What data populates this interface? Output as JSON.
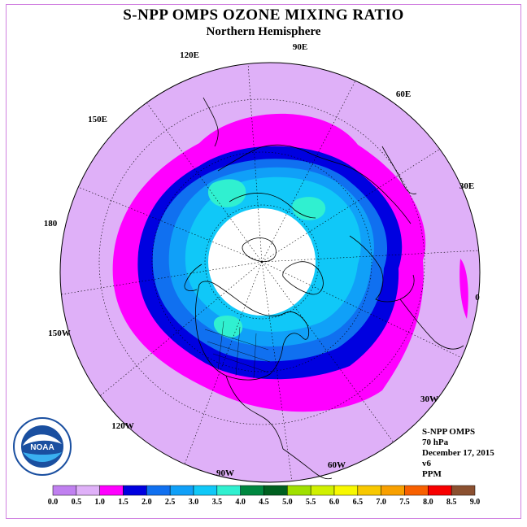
{
  "header": {
    "title": "S-NPP OMPS OZONE MIXING RATIO",
    "subtitle": "Northern Hemisphere"
  },
  "longitude_labels": [
    "90E",
    "60E",
    "30E",
    "0",
    "30W",
    "60W",
    "90W",
    "120W",
    "150W",
    "180",
    "150E",
    "120E"
  ],
  "info": {
    "line1": "S-NPP OMPS",
    "line2": "70 hPa",
    "line3": "December 17, 2015",
    "line4": "v6",
    "line5": "PPM"
  },
  "logo": {
    "text": "NOAA",
    "ring_text": "NATIONAL OCEANIC AND ATMOSPHERIC ADMINISTRATION · U.S. DEPARTMENT OF COMMERCE"
  },
  "color_scale": {
    "ticks": [
      "0.0",
      "0.5",
      "1.0",
      "1.5",
      "2.0",
      "2.5",
      "3.0",
      "3.5",
      "4.0",
      "4.5",
      "5.0",
      "5.5",
      "6.0",
      "6.5",
      "7.0",
      "7.5",
      "8.0",
      "8.5",
      "9.0"
    ],
    "colors": [
      "#c080f0",
      "#dfb0f8",
      "#ff00ff",
      "#0000e0",
      "#1070f0",
      "#10a0f8",
      "#10c8f8",
      "#30f0d0",
      "#008840",
      "#006020",
      "#a0e000",
      "#d0f000",
      "#f8f800",
      "#f8c800",
      "#f8a000",
      "#f86000",
      "#f80000",
      "#8b5030"
    ]
  },
  "map_colors": {
    "outer": "#dfb0f8",
    "ring_magenta": "#ff00ff",
    "ring_blue": "#0000e0",
    "band_mid_blue": "#1070f0",
    "band_light_blue": "#10a0f8",
    "band_cyan": "#10c8f8",
    "band_aqua": "#30f0d0",
    "no_data": "#ffffff"
  }
}
